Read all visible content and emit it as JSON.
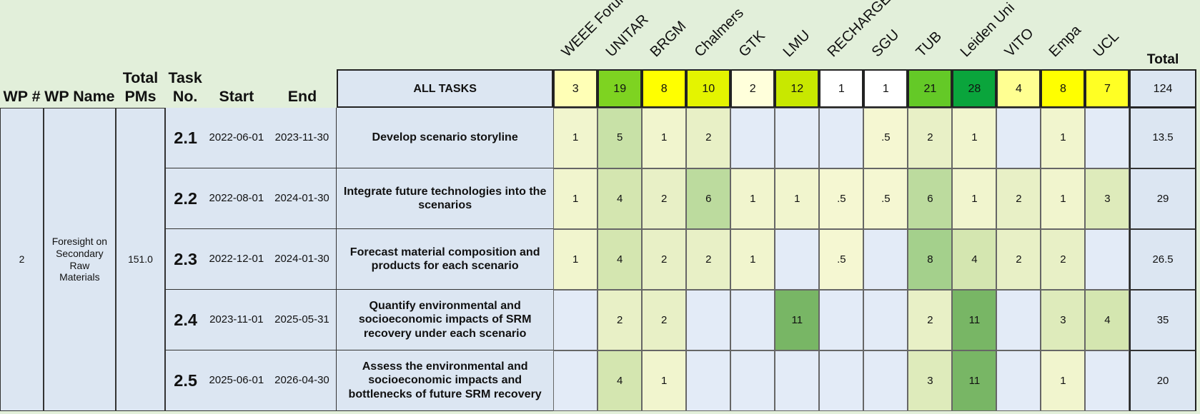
{
  "headers": {
    "wp_num": "WP #",
    "wp_name": "WP Name",
    "total_pms": "Total PMs",
    "task_no": "Task No.",
    "start": "Start",
    "end": "End",
    "total": "Total"
  },
  "partners": [
    "WEEE Forum",
    "UNITAR",
    "BRGM",
    "Chalmers",
    "GTK",
    "LMU",
    "RECHARGE",
    "SGU",
    "TUB",
    "Leiden Uni",
    "VITO",
    "Empa",
    "UCL"
  ],
  "all_tasks": {
    "label": "ALL TASKS",
    "values": [
      "3",
      "19",
      "8",
      "10",
      "2",
      "12",
      "1",
      "1",
      "21",
      "28",
      "4",
      "8",
      "7"
    ],
    "total": "124"
  },
  "work_package": {
    "number": "2",
    "name": "Foresight on Secondary Raw Materials",
    "total_pms": "151.0"
  },
  "tasks": [
    {
      "number": "2.1",
      "start": "2022-06-01",
      "end": "2023-11-30",
      "description": "Develop scenario storyline",
      "values": [
        "1",
        "5",
        "1",
        "2",
        null,
        null,
        null,
        ".5",
        "2",
        "1",
        null,
        "1",
        null
      ],
      "total": "13.5"
    },
    {
      "number": "2.2",
      "start": "2022-08-01",
      "end": "2024-01-30",
      "description": "Integrate future technologies into the scenarios",
      "values": [
        "1",
        "4",
        "2",
        "6",
        "1",
        "1",
        ".5",
        ".5",
        "6",
        "1",
        "2",
        "1",
        "3"
      ],
      "total": "29"
    },
    {
      "number": "2.3",
      "start": "2022-12-01",
      "end": "2024-01-30",
      "description": "Forecast material composition and products for each scenario",
      "values": [
        "1",
        "4",
        "2",
        "2",
        "1",
        null,
        ".5",
        null,
        "8",
        "4",
        "2",
        "2",
        null
      ],
      "total": "26.5"
    },
    {
      "number": "2.4",
      "start": "2023-11-01",
      "end": "2025-05-31",
      "description": "Quantify environmental and socioeconomic impacts of SRM recovery under each scenario",
      "values": [
        null,
        "2",
        "2",
        null,
        null,
        "11",
        null,
        null,
        "2",
        "11",
        null,
        "3",
        "4"
      ],
      "total": "35"
    },
    {
      "number": "2.5",
      "start": "2025-06-01",
      "end": "2026-04-30",
      "description": "Assess the environmental and socioeconomic impacts and bottlenecks of future SRM recovery",
      "values": [
        null,
        "4",
        "1",
        null,
        null,
        null,
        null,
        null,
        "3",
        "11",
        null,
        "1",
        null
      ],
      "total": "20"
    }
  ]
}
